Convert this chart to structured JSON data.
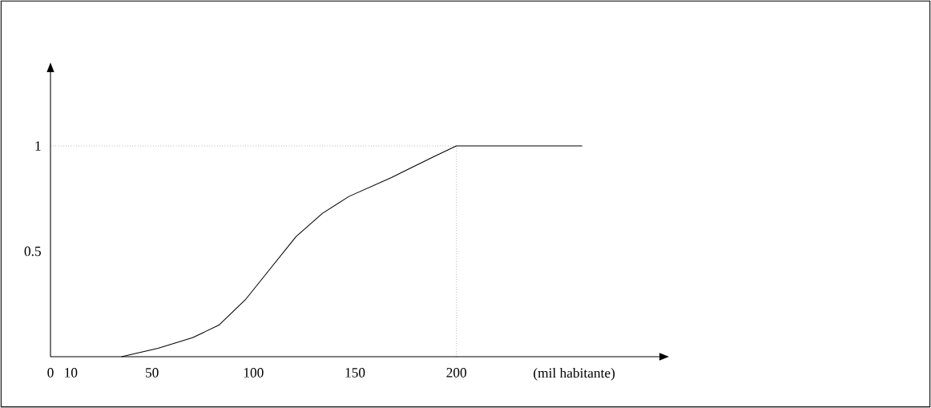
{
  "chart_data": {
    "type": "line",
    "xlabel": "(mil habitante)",
    "x": [
      35,
      53,
      70,
      83,
      96,
      108.5,
      121,
      134,
      147,
      168,
      189,
      200,
      262
    ],
    "values": [
      0,
      0.04,
      0.09,
      0.15,
      0.27,
      0.42,
      0.57,
      0.68,
      0.76,
      0.85,
      0.95,
      1,
      1
    ],
    "color": "#000000",
    "xlim": [
      0,
      300
    ],
    "ylim": [
      0,
      1.35
    ],
    "xticks": [
      0,
      10,
      50,
      100,
      150,
      200
    ],
    "yticks": [
      0.5,
      1
    ],
    "grid": false,
    "marker": "none",
    "line_style": "solid",
    "ref_lines": [
      {
        "axis": "y",
        "value": 1,
        "line_style": "dotted"
      },
      {
        "axis": "x",
        "value": 200,
        "line_style": "dotted"
      }
    ]
  }
}
